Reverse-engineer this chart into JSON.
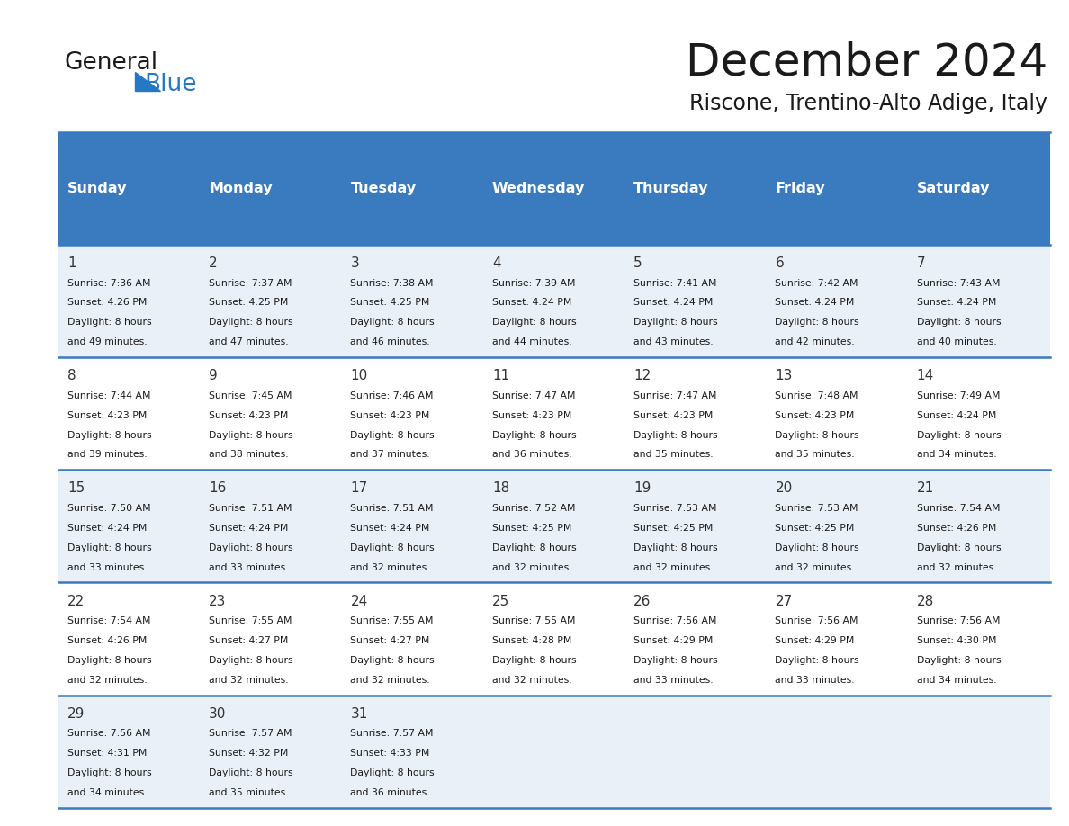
{
  "title": "December 2024",
  "subtitle": "Riscone, Trentino-Alto Adige, Italy",
  "header_bg_color": "#3a7abf",
  "header_text_color": "#ffffff",
  "cell_bg_even": "#eaf0f7",
  "cell_bg_odd": "#ffffff",
  "day_headers": [
    "Sunday",
    "Monday",
    "Tuesday",
    "Wednesday",
    "Thursday",
    "Friday",
    "Saturday"
  ],
  "days_data": [
    {
      "day": 1,
      "col": 0,
      "row": 0,
      "sunrise": "7:36 AM",
      "sunset": "4:26 PM",
      "daylight_hours": 8,
      "daylight_minutes": 49
    },
    {
      "day": 2,
      "col": 1,
      "row": 0,
      "sunrise": "7:37 AM",
      "sunset": "4:25 PM",
      "daylight_hours": 8,
      "daylight_minutes": 47
    },
    {
      "day": 3,
      "col": 2,
      "row": 0,
      "sunrise": "7:38 AM",
      "sunset": "4:25 PM",
      "daylight_hours": 8,
      "daylight_minutes": 46
    },
    {
      "day": 4,
      "col": 3,
      "row": 0,
      "sunrise": "7:39 AM",
      "sunset": "4:24 PM",
      "daylight_hours": 8,
      "daylight_minutes": 44
    },
    {
      "day": 5,
      "col": 4,
      "row": 0,
      "sunrise": "7:41 AM",
      "sunset": "4:24 PM",
      "daylight_hours": 8,
      "daylight_minutes": 43
    },
    {
      "day": 6,
      "col": 5,
      "row": 0,
      "sunrise": "7:42 AM",
      "sunset": "4:24 PM",
      "daylight_hours": 8,
      "daylight_minutes": 42
    },
    {
      "day": 7,
      "col": 6,
      "row": 0,
      "sunrise": "7:43 AM",
      "sunset": "4:24 PM",
      "daylight_hours": 8,
      "daylight_minutes": 40
    },
    {
      "day": 8,
      "col": 0,
      "row": 1,
      "sunrise": "7:44 AM",
      "sunset": "4:23 PM",
      "daylight_hours": 8,
      "daylight_minutes": 39
    },
    {
      "day": 9,
      "col": 1,
      "row": 1,
      "sunrise": "7:45 AM",
      "sunset": "4:23 PM",
      "daylight_hours": 8,
      "daylight_minutes": 38
    },
    {
      "day": 10,
      "col": 2,
      "row": 1,
      "sunrise": "7:46 AM",
      "sunset": "4:23 PM",
      "daylight_hours": 8,
      "daylight_minutes": 37
    },
    {
      "day": 11,
      "col": 3,
      "row": 1,
      "sunrise": "7:47 AM",
      "sunset": "4:23 PM",
      "daylight_hours": 8,
      "daylight_minutes": 36
    },
    {
      "day": 12,
      "col": 4,
      "row": 1,
      "sunrise": "7:47 AM",
      "sunset": "4:23 PM",
      "daylight_hours": 8,
      "daylight_minutes": 35
    },
    {
      "day": 13,
      "col": 5,
      "row": 1,
      "sunrise": "7:48 AM",
      "sunset": "4:23 PM",
      "daylight_hours": 8,
      "daylight_minutes": 35
    },
    {
      "day": 14,
      "col": 6,
      "row": 1,
      "sunrise": "7:49 AM",
      "sunset": "4:24 PM",
      "daylight_hours": 8,
      "daylight_minutes": 34
    },
    {
      "day": 15,
      "col": 0,
      "row": 2,
      "sunrise": "7:50 AM",
      "sunset": "4:24 PM",
      "daylight_hours": 8,
      "daylight_minutes": 33
    },
    {
      "day": 16,
      "col": 1,
      "row": 2,
      "sunrise": "7:51 AM",
      "sunset": "4:24 PM",
      "daylight_hours": 8,
      "daylight_minutes": 33
    },
    {
      "day": 17,
      "col": 2,
      "row": 2,
      "sunrise": "7:51 AM",
      "sunset": "4:24 PM",
      "daylight_hours": 8,
      "daylight_minutes": 32
    },
    {
      "day": 18,
      "col": 3,
      "row": 2,
      "sunrise": "7:52 AM",
      "sunset": "4:25 PM",
      "daylight_hours": 8,
      "daylight_minutes": 32
    },
    {
      "day": 19,
      "col": 4,
      "row": 2,
      "sunrise": "7:53 AM",
      "sunset": "4:25 PM",
      "daylight_hours": 8,
      "daylight_minutes": 32
    },
    {
      "day": 20,
      "col": 5,
      "row": 2,
      "sunrise": "7:53 AM",
      "sunset": "4:25 PM",
      "daylight_hours": 8,
      "daylight_minutes": 32
    },
    {
      "day": 21,
      "col": 6,
      "row": 2,
      "sunrise": "7:54 AM",
      "sunset": "4:26 PM",
      "daylight_hours": 8,
      "daylight_minutes": 32
    },
    {
      "day": 22,
      "col": 0,
      "row": 3,
      "sunrise": "7:54 AM",
      "sunset": "4:26 PM",
      "daylight_hours": 8,
      "daylight_minutes": 32
    },
    {
      "day": 23,
      "col": 1,
      "row": 3,
      "sunrise": "7:55 AM",
      "sunset": "4:27 PM",
      "daylight_hours": 8,
      "daylight_minutes": 32
    },
    {
      "day": 24,
      "col": 2,
      "row": 3,
      "sunrise": "7:55 AM",
      "sunset": "4:27 PM",
      "daylight_hours": 8,
      "daylight_minutes": 32
    },
    {
      "day": 25,
      "col": 3,
      "row": 3,
      "sunrise": "7:55 AM",
      "sunset": "4:28 PM",
      "daylight_hours": 8,
      "daylight_minutes": 32
    },
    {
      "day": 26,
      "col": 4,
      "row": 3,
      "sunrise": "7:56 AM",
      "sunset": "4:29 PM",
      "daylight_hours": 8,
      "daylight_minutes": 33
    },
    {
      "day": 27,
      "col": 5,
      "row": 3,
      "sunrise": "7:56 AM",
      "sunset": "4:29 PM",
      "daylight_hours": 8,
      "daylight_minutes": 33
    },
    {
      "day": 28,
      "col": 6,
      "row": 3,
      "sunrise": "7:56 AM",
      "sunset": "4:30 PM",
      "daylight_hours": 8,
      "daylight_minutes": 34
    },
    {
      "day": 29,
      "col": 0,
      "row": 4,
      "sunrise": "7:56 AM",
      "sunset": "4:31 PM",
      "daylight_hours": 8,
      "daylight_minutes": 34
    },
    {
      "day": 30,
      "col": 1,
      "row": 4,
      "sunrise": "7:57 AM",
      "sunset": "4:32 PM",
      "daylight_hours": 8,
      "daylight_minutes": 35
    },
    {
      "day": 31,
      "col": 2,
      "row": 4,
      "sunrise": "7:57 AM",
      "sunset": "4:33 PM",
      "daylight_hours": 8,
      "daylight_minutes": 36
    }
  ],
  "num_rows": 5,
  "num_cols": 7,
  "logo_text_general": "General",
  "logo_text_blue": "Blue",
  "logo_color_general": "#1a1a1a",
  "logo_color_blue": "#2778c4",
  "logo_triangle_color": "#2778c4",
  "title_color": "#1a1a1a",
  "subtitle_color": "#1a1a1a",
  "grid_line_color": "#3a7abf",
  "cell_text_color": "#1a1a1a",
  "day_num_color": "#333333"
}
